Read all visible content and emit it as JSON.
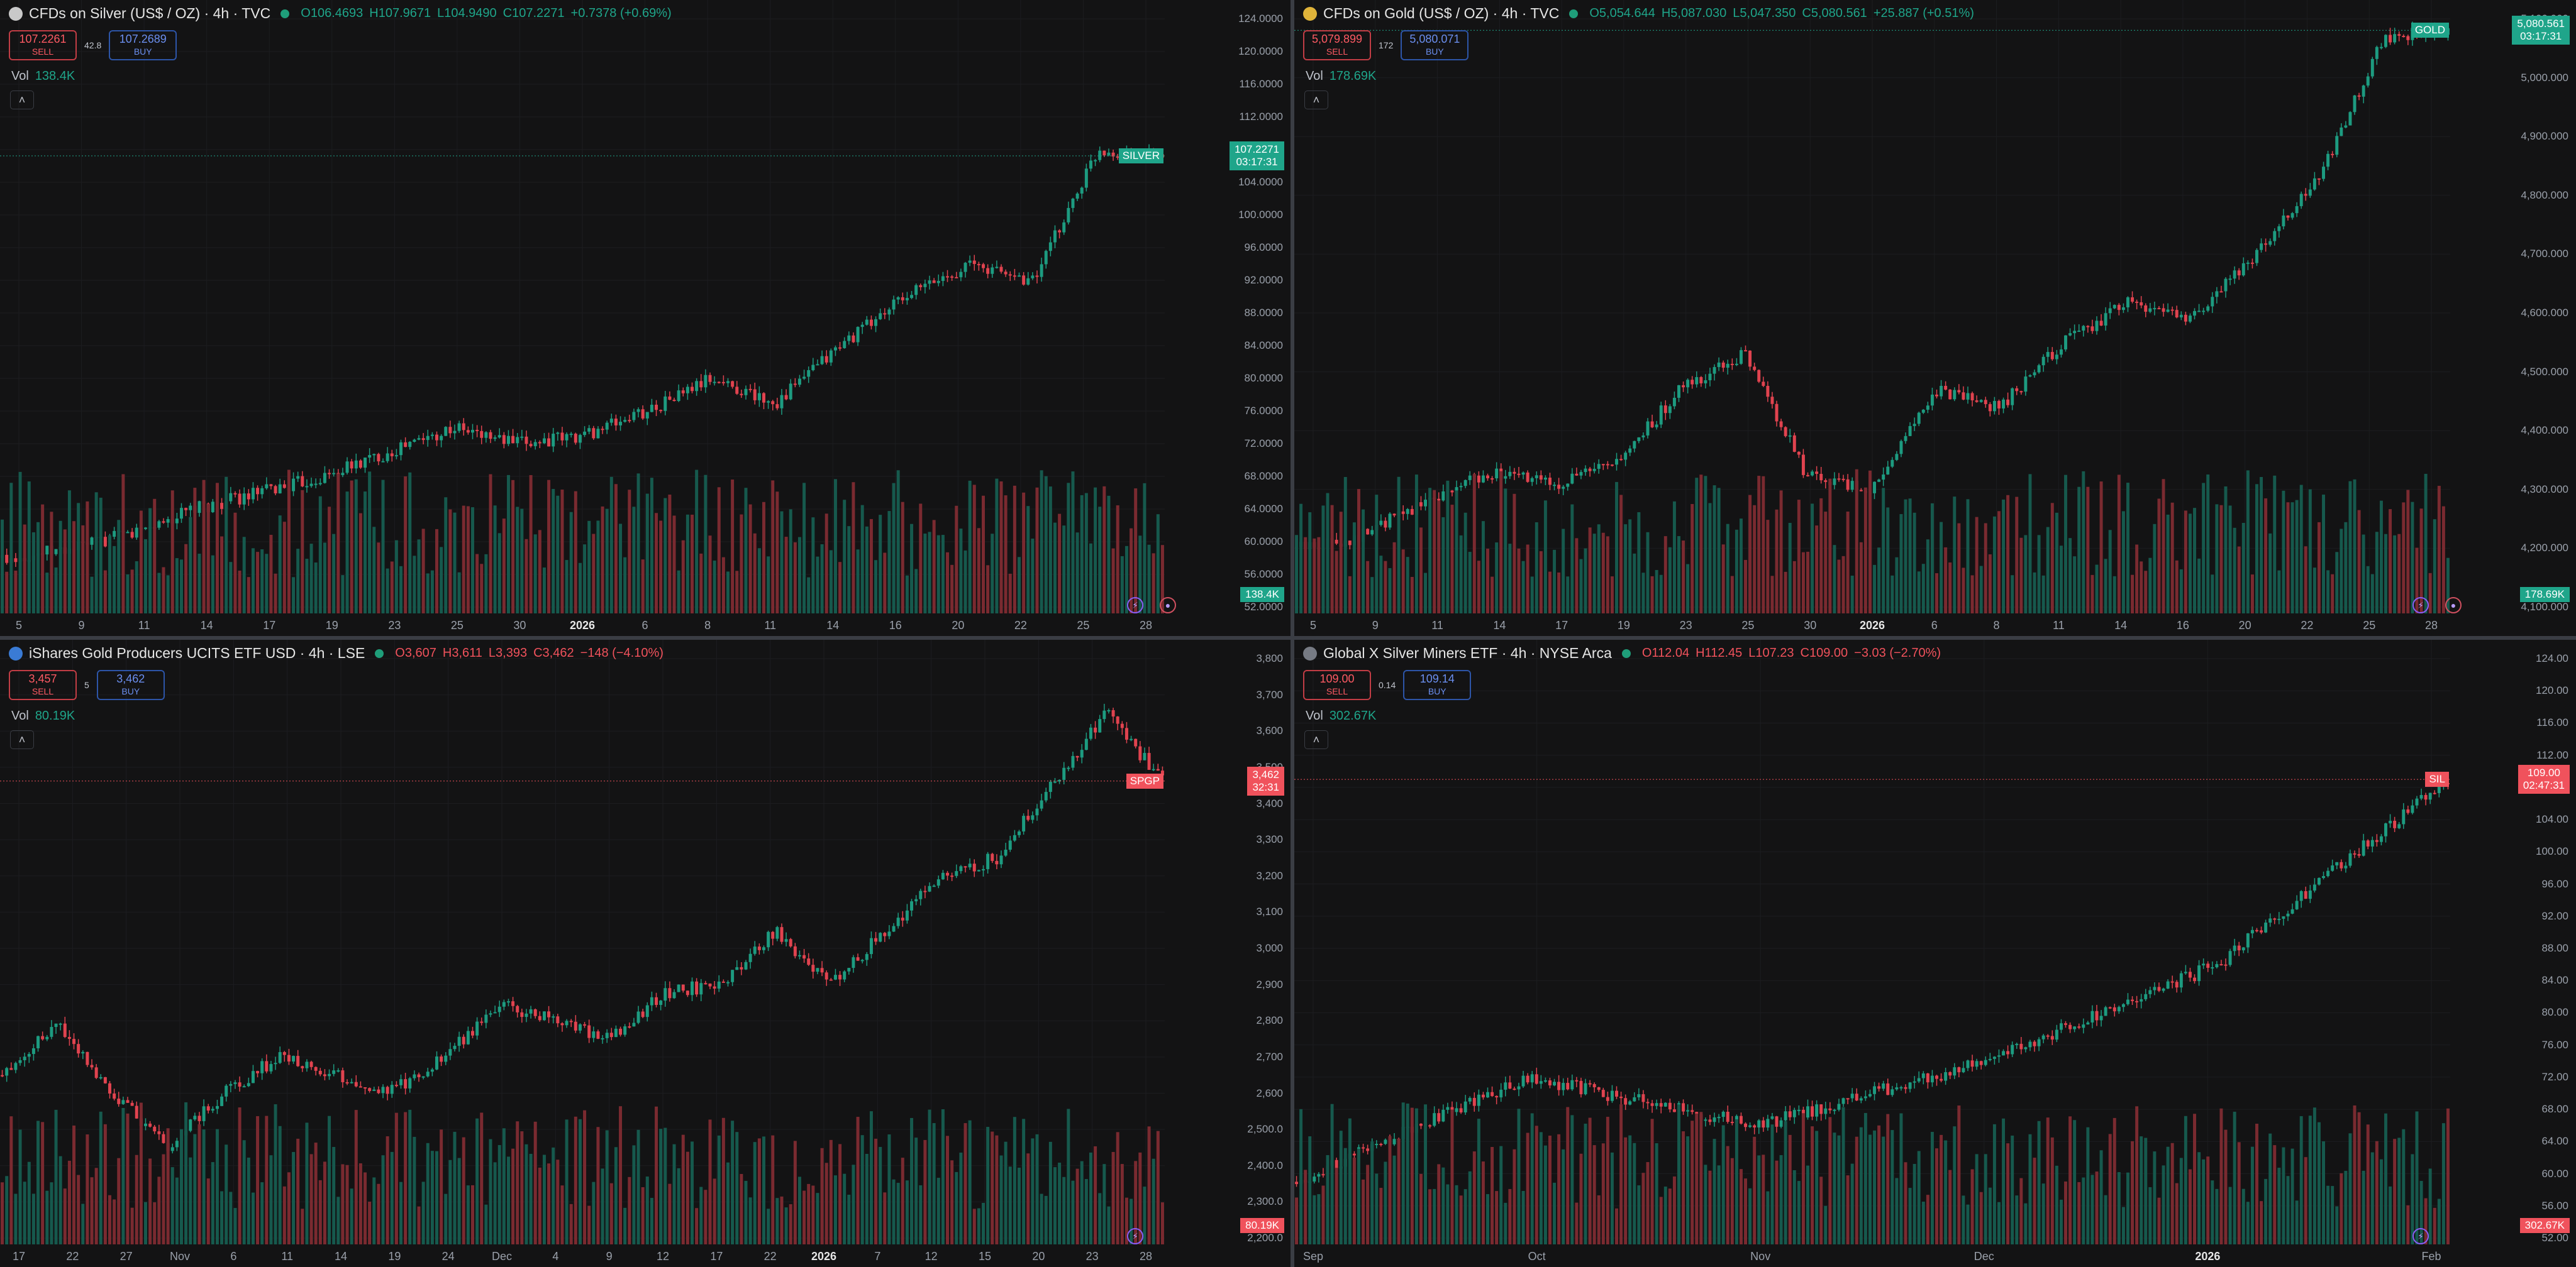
{
  "panes": [
    {
      "id": "silver",
      "title": "CFDs on Silver (US$ / OZ) · 4h · TVC",
      "icon_color": "#c9c9c9",
      "ohlc": [
        "O106.4693",
        "H107.9671",
        "L104.9490",
        "C107.2271",
        "+0.7378 (+0.69%)"
      ],
      "ohlc_color": "#1fa58a",
      "sell": {
        "price": "107.2261",
        "label": "SELL"
      },
      "spread": "42.8",
      "buy": {
        "price": "107.2689",
        "label": "BUY"
      },
      "vol_label": "Vol",
      "vol_value": "138.4K",
      "price_labels": [
        "124.0000",
        "120.0000",
        "116.0000",
        "112.0000",
        "108.0000",
        "104.0000",
        "100.0000",
        "96.0000",
        "92.0000",
        "88.0000",
        "84.0000",
        "80.0000",
        "76.0000",
        "72.0000",
        "68.0000",
        "64.0000",
        "60.0000",
        "56.0000",
        "52.0000"
      ],
      "time_labels": [
        "5",
        "9",
        "11",
        "14",
        "17",
        "19",
        "23",
        "25",
        "30",
        "2026",
        "6",
        "8",
        "11",
        "14",
        "16",
        "20",
        "22",
        "25",
        "28"
      ],
      "bold_time": "2026",
      "symbol_badge": "SILVER",
      "last_price": "107.2271",
      "countdown": "03:17:31",
      "vol_badge": "138.4K",
      "accent": "#1fa58a"
    },
    {
      "id": "gold",
      "title": "CFDs on Gold (US$ / OZ) · 4h · TVC",
      "icon_color": "#e0b43a",
      "ohlc": [
        "O5,054.644",
        "H5,087.030",
        "L5,047.350",
        "C5,080.561",
        "+25.887 (+0.51%)"
      ],
      "ohlc_color": "#1fa58a",
      "sell": {
        "price": "5,079.899",
        "label": "SELL"
      },
      "spread": "172",
      "buy": {
        "price": "5,080.071",
        "label": "BUY"
      },
      "vol_label": "Vol",
      "vol_value": "178.69K",
      "price_labels": [
        "5,100.000",
        "5,000.000",
        "4,900.000",
        "4,800.000",
        "4,700.000",
        "4,600.000",
        "4,500.000",
        "4,400.000",
        "4,300.000",
        "4,200.000",
        "4,100.000"
      ],
      "time_labels": [
        "5",
        "9",
        "11",
        "14",
        "17",
        "19",
        "23",
        "25",
        "30",
        "2026",
        "6",
        "8",
        "11",
        "14",
        "16",
        "20",
        "22",
        "25",
        "28"
      ],
      "bold_time": "2026",
      "symbol_badge": "GOLD",
      "last_price": "5,080.561",
      "countdown": "03:17:31",
      "vol_badge": "178.69K",
      "accent": "#1fa58a"
    },
    {
      "id": "gdx",
      "title": "iShares Gold Producers UCITS ETF USD · 4h · LSE",
      "icon_color": "#3a7bd5",
      "ohlc": [
        "O3,607",
        "H3,611",
        "L3,393",
        "C3,462",
        "−148 (−4.10%)"
      ],
      "ohlc_color": "#f0525c",
      "sell": {
        "price": "3,457",
        "label": "SELL"
      },
      "spread": "5",
      "buy": {
        "price": "3,462",
        "label": "BUY"
      },
      "vol_label": "Vol",
      "vol_value": "80.19K",
      "price_labels": [
        "3,800",
        "3,700",
        "3,600",
        "3,500",
        "3,400",
        "3,300",
        "3,200",
        "3,100",
        "3,000",
        "2,900",
        "2,800",
        "2,700",
        "2,600",
        "2,500.0",
        "2,400.0",
        "2,300.0",
        "2,200.0"
      ],
      "time_labels": [
        "17",
        "22",
        "27",
        "Nov",
        "6",
        "11",
        "14",
        "19",
        "24",
        "Dec",
        "4",
        "9",
        "12",
        "17",
        "22",
        "2026",
        "7",
        "12",
        "15",
        "20",
        "23",
        "28"
      ],
      "bold_time": "2026",
      "symbol_badge": "SPGP",
      "last_price": "3,462",
      "countdown": "32:31",
      "vol_badge": "80.19K",
      "accent": "#f0525c"
    },
    {
      "id": "sil",
      "title": "Global X Silver Miners ETF · 4h · NYSE Arca",
      "icon_color": "#777b84",
      "ohlc": [
        "O112.04",
        "H112.45",
        "L107.23",
        "C109.00",
        "−3.03 (−2.70%)"
      ],
      "ohlc_color": "#f0525c",
      "sell": {
        "price": "109.00",
        "label": "SELL"
      },
      "spread": "0.14",
      "buy": {
        "price": "109.14",
        "label": "BUY"
      },
      "vol_label": "Vol",
      "vol_value": "302.67K",
      "price_labels": [
        "124.00",
        "120.00",
        "116.00",
        "112.00",
        "108.00",
        "104.00",
        "100.00",
        "96.00",
        "92.00",
        "88.00",
        "84.00",
        "80.00",
        "76.00",
        "72.00",
        "68.00",
        "64.00",
        "60.00",
        "56.00",
        "52.00"
      ],
      "time_labels": [
        "Sep",
        "Oct",
        "Nov",
        "Dec",
        "2026",
        "Feb"
      ],
      "bold_time": "2026",
      "symbol_badge": "SIL",
      "last_price": "109.00",
      "countdown": "02:47:31",
      "vol_badge": "302.67K",
      "accent": "#f0525c"
    }
  ],
  "chart_data": [
    {
      "type": "line",
      "title": "CFDs on Silver (US$ / OZ) · 4h · TVC",
      "ylim": [
        52,
        124
      ],
      "x": [
        "5",
        "9",
        "11",
        "14",
        "17",
        "19",
        "23",
        "25",
        "30",
        "2026",
        "6",
        "8",
        "11",
        "14",
        "16",
        "20",
        "22",
        "25",
        "28"
      ],
      "series": [
        {
          "name": "SILVER",
          "values": [
            58,
            59,
            61,
            64,
            66,
            68,
            71,
            74,
            72,
            73,
            76,
            80,
            77,
            84,
            90,
            94,
            92,
            108,
            107.2271
          ]
        }
      ]
    },
    {
      "type": "line",
      "title": "CFDs on Gold (US$ / OZ) · 4h · TVC",
      "ylim": [
        4100,
        5100
      ],
      "x": [
        "5",
        "9",
        "11",
        "14",
        "17",
        "19",
        "23",
        "25",
        "30",
        "2026",
        "6",
        "8",
        "11",
        "14",
        "16",
        "20",
        "22",
        "25",
        "28"
      ],
      "series": [
        {
          "name": "GOLD",
          "values": [
            4200,
            4220,
            4280,
            4330,
            4310,
            4340,
            4470,
            4530,
            4320,
            4300,
            4470,
            4440,
            4550,
            4620,
            4590,
            4700,
            4830,
            5070,
            5080.561
          ]
        }
      ]
    },
    {
      "type": "line",
      "title": "iShares Gold Producers UCITS ETF USD · 4h · LSE",
      "ylim": [
        2200,
        3800
      ],
      "x": [
        "17",
        "22",
        "27",
        "Nov",
        "6",
        "11",
        "14",
        "19",
        "24",
        "Dec",
        "4",
        "9",
        "12",
        "17",
        "22",
        "2026",
        "7",
        "12",
        "15",
        "20",
        "23",
        "28"
      ],
      "series": [
        {
          "name": "SPGP",
          "values": [
            2650,
            2800,
            2600,
            2450,
            2600,
            2700,
            2650,
            2600,
            2700,
            2850,
            2800,
            2750,
            2880,
            2900,
            3050,
            2900,
            3050,
            3200,
            3250,
            3450,
            3650,
            3462
          ]
        }
      ]
    },
    {
      "type": "line",
      "title": "Global X Silver Miners ETF · 4h · NYSE Arca",
      "ylim": [
        52,
        124
      ],
      "x": [
        "Sep",
        "Oct",
        "Nov",
        "Dec",
        "2026",
        "Feb"
      ],
      "series": [
        {
          "name": "SIL",
          "values": [
            59,
            72,
            66,
            74,
            86,
            109
          ]
        }
      ]
    }
  ]
}
